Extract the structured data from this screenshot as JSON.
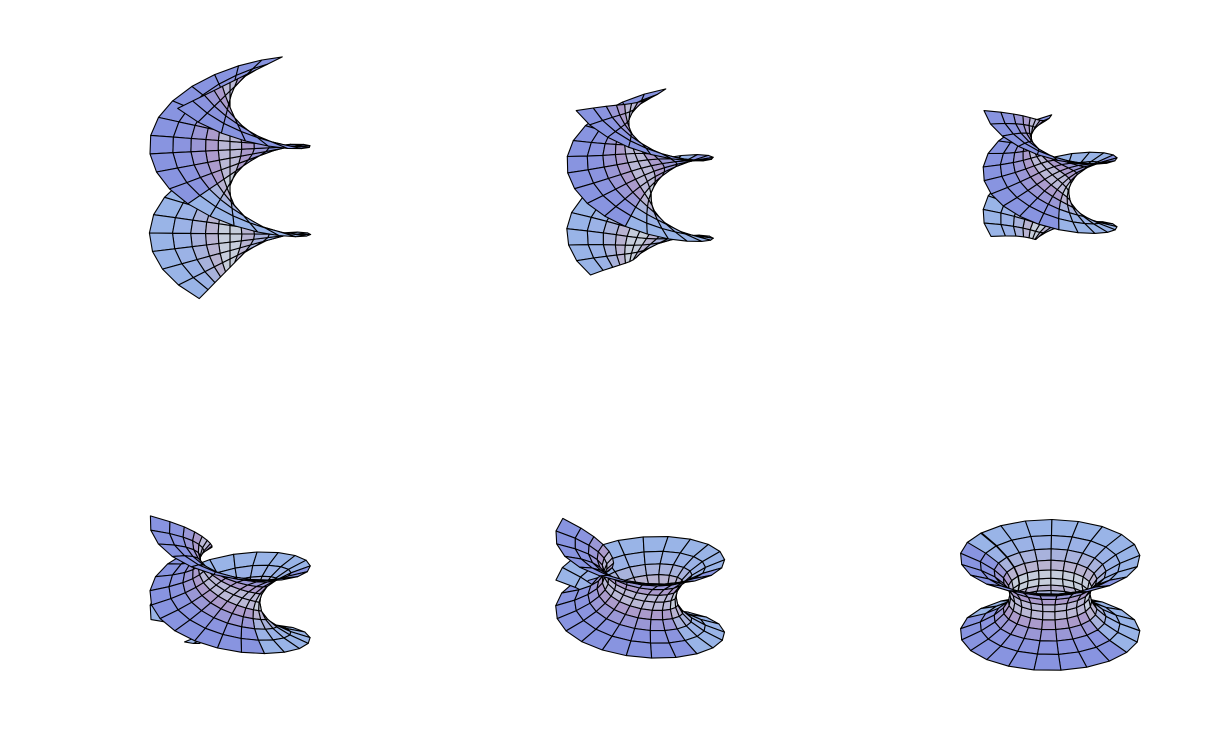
{
  "figure": {
    "description_visible_text": "",
    "colors": {
      "background": "#ffffff",
      "mesh_line": "#000000",
      "tone_light_blue": "#8ec8f2",
      "tone_blue": "#6f8fe6",
      "tone_lavender": "#a99ad8",
      "tone_pink": "#d7a4b8",
      "tone_pale": "#efe6d8"
    },
    "panels": [
      {
        "name": "helicoid-stage-1",
        "t": 0.0
      },
      {
        "name": "helicoid-stage-2",
        "t": 0.2
      },
      {
        "name": "helicoid-stage-3",
        "t": 0.4
      },
      {
        "name": "helicoid-stage-4",
        "t": 0.6
      },
      {
        "name": "helicoid-stage-5",
        "t": 0.8
      },
      {
        "name": "catenoid-stage-6",
        "t": 1.0
      }
    ]
  }
}
